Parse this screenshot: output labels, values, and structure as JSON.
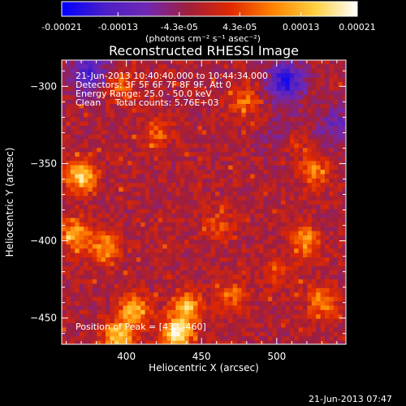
{
  "chart_data": {
    "type": "heatmap",
    "title": "Reconstructed RHESSI Image",
    "xlabel": "Heliocentric X (arcsec)",
    "ylabel": "Heliocentric Y (arcsec)",
    "xlim": [
      357,
      546
    ],
    "ylim": [
      -467,
      -283
    ],
    "xticks": [
      400,
      450,
      500
    ],
    "yticks": [
      -300,
      -350,
      -400,
      -450
    ],
    "colorbar": {
      "range": [
        -0.00021,
        0.00021
      ],
      "ticks": [
        -0.00021,
        -0.00013,
        -4.3e-05,
        4.3e-05,
        0.00013,
        0.00021
      ],
      "tick_labels": [
        "-0.00021",
        "-0.00013",
        "-4.3e-05",
        "4.3e-05",
        "0.00013",
        "0.00021"
      ],
      "units_label": "(photons cm⁻² s⁻¹ asec⁻²)",
      "colormap": [
        "#0000ff",
        "#4a1ec8",
        "#7028b4",
        "#a01e3c",
        "#e02800",
        "#ff8200",
        "#ffd040",
        "#ffffff"
      ]
    },
    "annotations": [
      "21-Jun-2013 10:40:40.000 to 10:44:34.000",
      "Detectors: 3F 5F 6F 7F 8F 9F, Att 0",
      "Energy Range: 25.0 - 50.0 keV",
      "Clean     Total counts: 5.76E+03"
    ],
    "peak_label": "Position of Peak = [433,-460]",
    "peak": {
      "x": 433,
      "y": -460
    },
    "hotspots": [
      {
        "x": 370,
        "y": -358,
        "v": 0.00018
      },
      {
        "x": 366,
        "y": -395,
        "v": 0.00014
      },
      {
        "x": 385,
        "y": -405,
        "v": 0.00012
      },
      {
        "x": 405,
        "y": -445,
        "v": 0.00015
      },
      {
        "x": 395,
        "y": -462,
        "v": 0.00017
      },
      {
        "x": 433,
        "y": -460,
        "v": 0.00021
      },
      {
        "x": 440,
        "y": -443,
        "v": 0.00016
      },
      {
        "x": 395,
        "y": -300,
        "v": 9e-05
      },
      {
        "x": 510,
        "y": -335,
        "v": 0.0001
      },
      {
        "x": 525,
        "y": -355,
        "v": 0.0001
      },
      {
        "x": 518,
        "y": -400,
        "v": 0.00012
      },
      {
        "x": 530,
        "y": -440,
        "v": 0.00011
      },
      {
        "x": 478,
        "y": -310,
        "v": 9e-05
      },
      {
        "x": 470,
        "y": -435,
        "v": 8e-05
      },
      {
        "x": 460,
        "y": -390,
        "v": 7e-05
      },
      {
        "x": 420,
        "y": -330,
        "v": 8e-05
      },
      {
        "x": 500,
        "y": -420,
        "v": 6e-05
      }
    ],
    "coldspots": [
      {
        "x": 375,
        "y": -292,
        "v": -0.00013
      },
      {
        "x": 505,
        "y": -297,
        "v": -0.00015
      },
      {
        "x": 505,
        "y": -332,
        "v": -8e-05
      },
      {
        "x": 540,
        "y": -325,
        "v": -9e-05
      }
    ]
  },
  "timestamp": "21-Jun-2013 07:47"
}
